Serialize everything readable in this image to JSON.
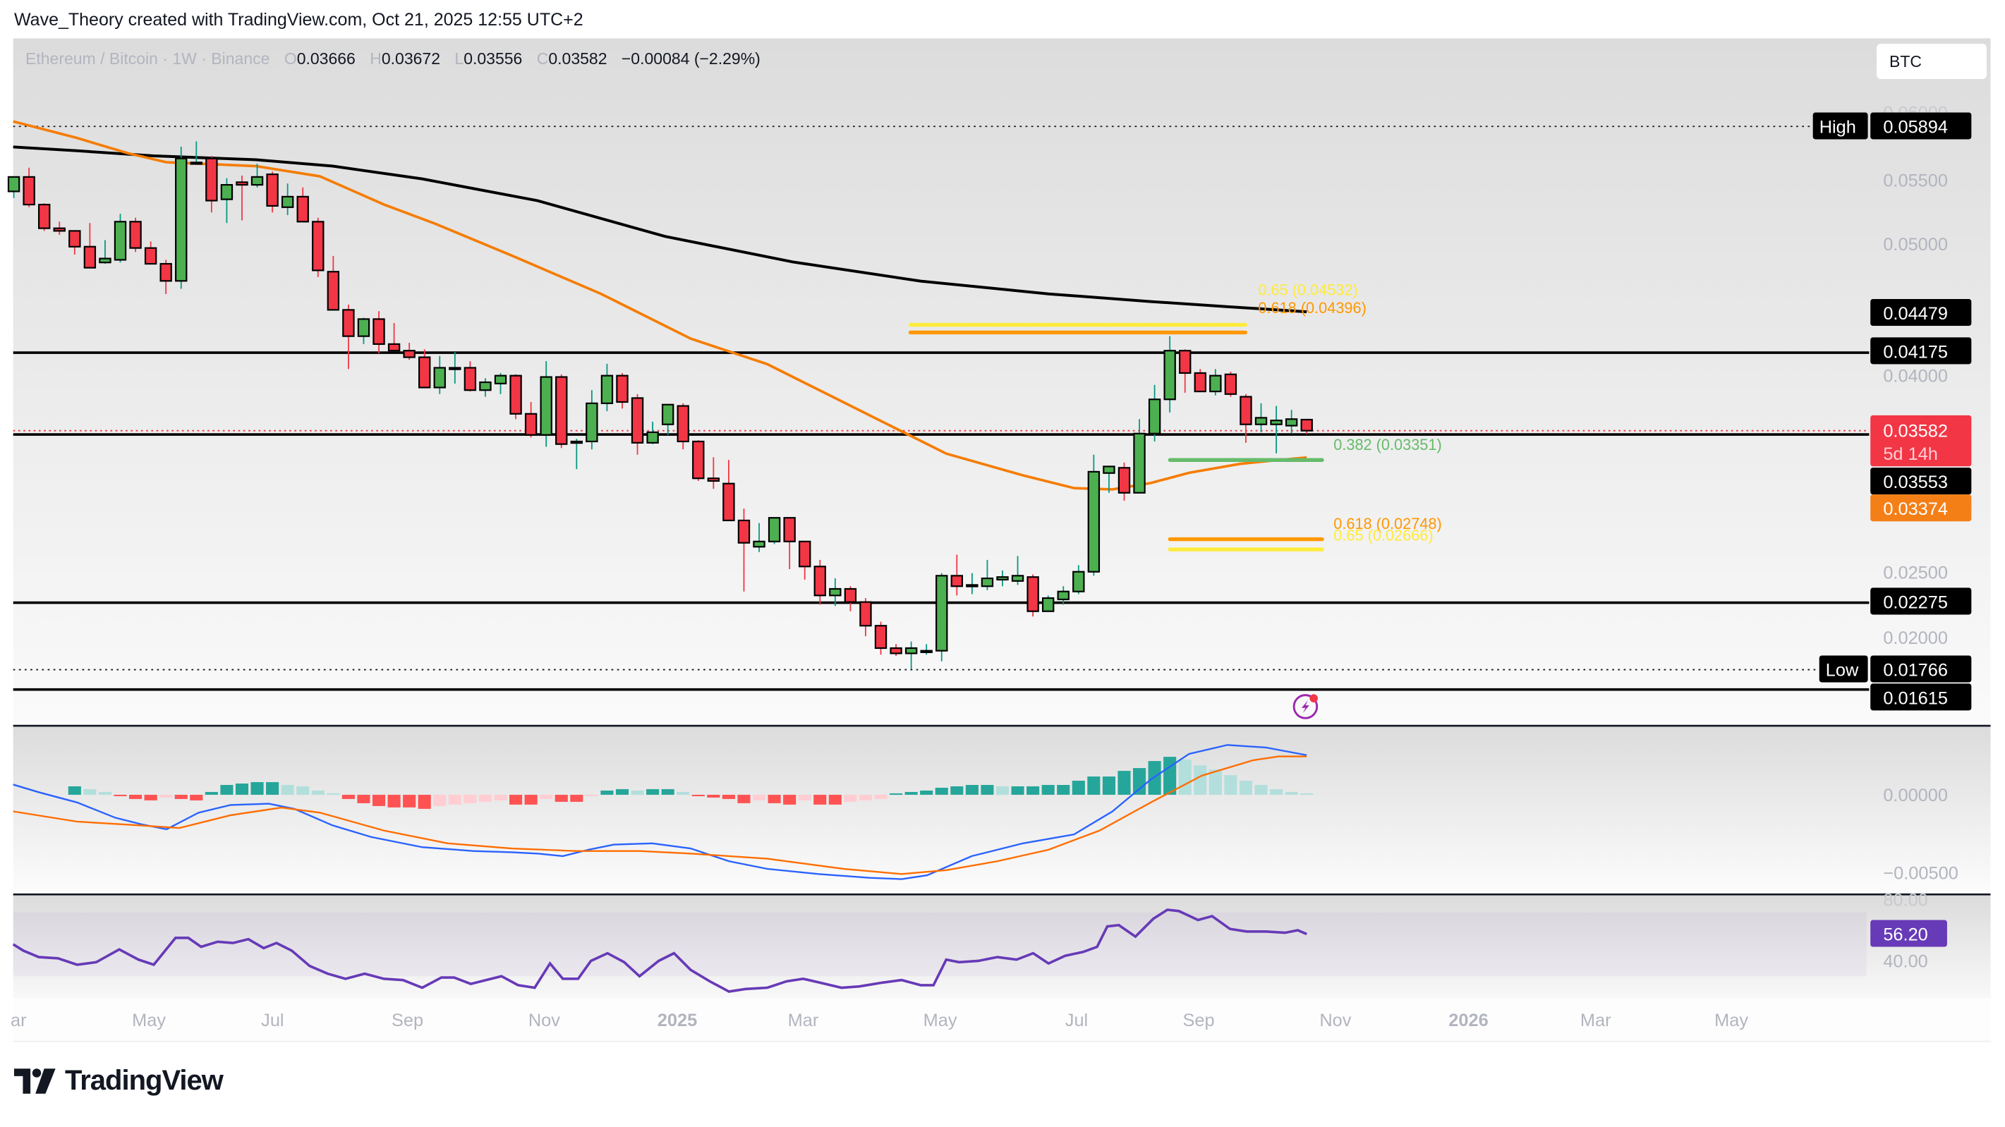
{
  "header": {
    "attribution": "Wave_Theory created with TradingView.com, Oct 21, 2025 12:55 UTC+2"
  },
  "legend": {
    "symbol": "Ethereum / Bitcoin · 1W · Binance",
    "open_label": "O",
    "open": "0.03666",
    "high_label": "H",
    "high": "0.03672",
    "low_label": "L",
    "low": "0.03556",
    "close_label": "C",
    "close": "0.03582",
    "change": "−0.00084 (−2.29%)"
  },
  "currency_button": "BTC",
  "price_axis": {
    "ticks": [
      "0.06000",
      "0.05500",
      "0.05000",
      "0.04000",
      "0.02500",
      "0.02000"
    ],
    "labels": {
      "high_tag": "High",
      "high_value": "0.05894",
      "ma200": "0.04479",
      "resistance": "0.04175",
      "last_price": "0.03582",
      "countdown": "5d 14h",
      "support": "0.03553",
      "ma50": "0.03374",
      "support_low": "0.02275",
      "low_tag": "Low",
      "low_value": "0.01766",
      "bottom_line": "0.01615"
    }
  },
  "fib_labels": {
    "upper_065": "0.65 (0.04532)",
    "upper_0618": "0.618 (0.04396)",
    "mid_0382": "0.382 (0.03351)",
    "lower_0618": "0.618 (0.02748)",
    "lower_065": "0.65 (0.02666)"
  },
  "macd_axis": {
    "ticks": [
      "0.00000",
      "−0.00500"
    ]
  },
  "rsi_axis": {
    "ticks": [
      "80.00",
      "40.00"
    ],
    "value": "56.20"
  },
  "time_axis": [
    "ar",
    "May",
    "Jul",
    "Sep",
    "Nov",
    "2025",
    "Mar",
    "May",
    "Jul",
    "Sep",
    "Nov",
    "2026",
    "Mar",
    "May"
  ],
  "brand": {
    "name": "TradingView"
  },
  "colors": {
    "up": "#4CAF50",
    "down": "#F23645",
    "ma50": "#F57C00",
    "ma200": "#000000",
    "fib_065": "#FFEB3B",
    "fib_0618": "#FF9800",
    "fib_0382": "#66BB6A",
    "macd": "#2962FF",
    "signal": "#FF6D00",
    "rsi": "#673AB7",
    "hist_up_strong": "#26A69A",
    "hist_up_weak": "#B2DFDB",
    "hist_down_strong": "#FF5252",
    "hist_down_weak": "#FFCDD2"
  },
  "chart_data": {
    "type": "candlestick",
    "title": "Ethereum / Bitcoin · 1W · Binance",
    "interval": "1W",
    "x_range": [
      "Mar 2024",
      "Oct 2025"
    ],
    "ylim": [
      0.0155,
      0.0605
    ],
    "y_ticks": [
      0.02,
      0.025,
      0.04,
      0.05,
      0.055,
      0.06
    ],
    "ohlc_current": {
      "open": 0.03666,
      "high": 0.03672,
      "low": 0.03556,
      "close": 0.03582,
      "change": -0.00084,
      "change_pct": -2.29
    },
    "candles": [
      {
        "o": 0.054,
        "h": 0.0547,
        "l": 0.0535,
        "c": 0.0551
      },
      {
        "o": 0.0551,
        "h": 0.0558,
        "l": 0.0528,
        "c": 0.053
      },
      {
        "o": 0.053,
        "h": 0.0531,
        "l": 0.051,
        "c": 0.0512
      },
      {
        "o": 0.0512,
        "h": 0.0517,
        "l": 0.0507,
        "c": 0.051
      },
      {
        "o": 0.051,
        "h": 0.051,
        "l": 0.0492,
        "c": 0.0498
      },
      {
        "o": 0.0498,
        "h": 0.0516,
        "l": 0.0482,
        "c": 0.0482
      },
      {
        "o": 0.0486,
        "h": 0.0503,
        "l": 0.0485,
        "c": 0.0489
      },
      {
        "o": 0.0488,
        "h": 0.0523,
        "l": 0.0486,
        "c": 0.0517
      },
      {
        "o": 0.0517,
        "h": 0.052,
        "l": 0.0494,
        "c": 0.0497
      },
      {
        "o": 0.0497,
        "h": 0.0502,
        "l": 0.049,
        "c": 0.0485
      },
      {
        "o": 0.0485,
        "h": 0.0488,
        "l": 0.0462,
        "c": 0.0472
      },
      {
        "o": 0.0472,
        "h": 0.0574,
        "l": 0.0466,
        "c": 0.0565
      },
      {
        "o": 0.0562,
        "h": 0.0578,
        "l": 0.0562,
        "c": 0.0562
      },
      {
        "o": 0.0565,
        "h": 0.0567,
        "l": 0.0524,
        "c": 0.0533
      },
      {
        "o": 0.0534,
        "h": 0.055,
        "l": 0.0516,
        "c": 0.0545
      },
      {
        "o": 0.0547,
        "h": 0.0552,
        "l": 0.0518,
        "c": 0.0545
      },
      {
        "o": 0.0545,
        "h": 0.0561,
        "l": 0.0543,
        "c": 0.0551
      },
      {
        "o": 0.0553,
        "h": 0.0555,
        "l": 0.0524,
        "c": 0.0529
      },
      {
        "o": 0.0528,
        "h": 0.0546,
        "l": 0.0522,
        "c": 0.0536
      },
      {
        "o": 0.0536,
        "h": 0.0543,
        "l": 0.052,
        "c": 0.0517
      },
      {
        "o": 0.0517,
        "h": 0.052,
        "l": 0.0475,
        "c": 0.048
      },
      {
        "o": 0.0479,
        "h": 0.0491,
        "l": 0.0462,
        "c": 0.045
      },
      {
        "o": 0.045,
        "h": 0.0454,
        "l": 0.0405,
        "c": 0.043
      },
      {
        "o": 0.043,
        "h": 0.0444,
        "l": 0.0424,
        "c": 0.0443
      },
      {
        "o": 0.0443,
        "h": 0.0449,
        "l": 0.0417,
        "c": 0.0424
      },
      {
        "o": 0.0424,
        "h": 0.044,
        "l": 0.042,
        "c": 0.0419
      },
      {
        "o": 0.0419,
        "h": 0.0425,
        "l": 0.0412,
        "c": 0.0414
      },
      {
        "o": 0.0414,
        "h": 0.042,
        "l": 0.0398,
        "c": 0.0391
      },
      {
        "o": 0.0391,
        "h": 0.0415,
        "l": 0.0386,
        "c": 0.0406
      },
      {
        "o": 0.0406,
        "h": 0.0418,
        "l": 0.0394,
        "c": 0.0406
      },
      {
        "o": 0.0406,
        "h": 0.0411,
        "l": 0.0388,
        "c": 0.0389
      },
      {
        "o": 0.0389,
        "h": 0.0398,
        "l": 0.0384,
        "c": 0.0395
      },
      {
        "o": 0.0394,
        "h": 0.0402,
        "l": 0.0386,
        "c": 0.04
      },
      {
        "o": 0.04,
        "h": 0.0401,
        "l": 0.0367,
        "c": 0.0371
      },
      {
        "o": 0.0371,
        "h": 0.038,
        "l": 0.0353,
        "c": 0.0355
      },
      {
        "o": 0.0355,
        "h": 0.0411,
        "l": 0.0346,
        "c": 0.0399
      },
      {
        "o": 0.0399,
        "h": 0.0401,
        "l": 0.0345,
        "c": 0.0348
      },
      {
        "o": 0.035,
        "h": 0.0352,
        "l": 0.0329,
        "c": 0.035
      },
      {
        "o": 0.035,
        "h": 0.0389,
        "l": 0.0344,
        "c": 0.0379
      },
      {
        "o": 0.0379,
        "h": 0.0409,
        "l": 0.0373,
        "c": 0.04
      },
      {
        "o": 0.04,
        "h": 0.0402,
        "l": 0.0375,
        "c": 0.038
      },
      {
        "o": 0.0383,
        "h": 0.0386,
        "l": 0.034,
        "c": 0.0349
      },
      {
        "o": 0.0349,
        "h": 0.0365,
        "l": 0.0348,
        "c": 0.0357
      },
      {
        "o": 0.0363,
        "h": 0.0367,
        "l": 0.0355,
        "c": 0.0378
      },
      {
        "o": 0.0377,
        "h": 0.0379,
        "l": 0.0344,
        "c": 0.035
      },
      {
        "o": 0.035,
        "h": 0.0351,
        "l": 0.032,
        "c": 0.0322
      },
      {
        "o": 0.0322,
        "h": 0.0338,
        "l": 0.0314,
        "c": 0.032
      },
      {
        "o": 0.0318,
        "h": 0.0336,
        "l": 0.0302,
        "c": 0.029
      },
      {
        "o": 0.029,
        "h": 0.0299,
        "l": 0.0236,
        "c": 0.0273
      },
      {
        "o": 0.027,
        "h": 0.0288,
        "l": 0.0266,
        "c": 0.0274
      },
      {
        "o": 0.0274,
        "h": 0.0292,
        "l": 0.0272,
        "c": 0.0292
      },
      {
        "o": 0.0292,
        "h": 0.0292,
        "l": 0.0253,
        "c": 0.0274
      },
      {
        "o": 0.0274,
        "h": 0.0265,
        "l": 0.0245,
        "c": 0.0255
      },
      {
        "o": 0.0255,
        "h": 0.026,
        "l": 0.0226,
        "c": 0.0233
      },
      {
        "o": 0.0233,
        "h": 0.0246,
        "l": 0.0225,
        "c": 0.0238
      },
      {
        "o": 0.0238,
        "h": 0.024,
        "l": 0.0221,
        "c": 0.0228
      },
      {
        "o": 0.0228,
        "h": 0.0231,
        "l": 0.0202,
        "c": 0.021
      },
      {
        "o": 0.021,
        "h": 0.0213,
        "l": 0.0188,
        "c": 0.0193
      },
      {
        "o": 0.0193,
        "h": 0.0196,
        "l": 0.0187,
        "c": 0.0189
      },
      {
        "o": 0.0189,
        "h": 0.0198,
        "l": 0.0177,
        "c": 0.0193
      },
      {
        "o": 0.0191,
        "h": 0.0196,
        "l": 0.0188,
        "c": 0.0191
      },
      {
        "o": 0.0191,
        "h": 0.025,
        "l": 0.0183,
        "c": 0.0248
      },
      {
        "o": 0.0248,
        "h": 0.0264,
        "l": 0.0233,
        "c": 0.024
      },
      {
        "o": 0.0241,
        "h": 0.025,
        "l": 0.0234,
        "c": 0.0241
      },
      {
        "o": 0.024,
        "h": 0.026,
        "l": 0.0237,
        "c": 0.0246
      },
      {
        "o": 0.0245,
        "h": 0.0252,
        "l": 0.024,
        "c": 0.0247
      },
      {
        "o": 0.0244,
        "h": 0.0263,
        "l": 0.0241,
        "c": 0.0248
      },
      {
        "o": 0.0247,
        "h": 0.0249,
        "l": 0.0217,
        "c": 0.0221
      },
      {
        "o": 0.0221,
        "h": 0.0233,
        "l": 0.0222,
        "c": 0.0231
      },
      {
        "o": 0.023,
        "h": 0.024,
        "l": 0.0226,
        "c": 0.0236
      },
      {
        "o": 0.0236,
        "h": 0.0256,
        "l": 0.0234,
        "c": 0.0251
      },
      {
        "o": 0.0251,
        "h": 0.034,
        "l": 0.0248,
        "c": 0.0327
      },
      {
        "o": 0.0326,
        "h": 0.0328,
        "l": 0.0311,
        "c": 0.0331
      },
      {
        "o": 0.033,
        "h": 0.0334,
        "l": 0.0305,
        "c": 0.0311
      },
      {
        "o": 0.0311,
        "h": 0.0367,
        "l": 0.0311,
        "c": 0.0356
      },
      {
        "o": 0.0356,
        "h": 0.0393,
        "l": 0.035,
        "c": 0.0382
      },
      {
        "o": 0.0382,
        "h": 0.043,
        "l": 0.0372,
        "c": 0.0419
      },
      {
        "o": 0.0419,
        "h": 0.042,
        "l": 0.0387,
        "c": 0.0402
      },
      {
        "o": 0.0402,
        "h": 0.0405,
        "l": 0.0389,
        "c": 0.0388
      },
      {
        "o": 0.0388,
        "h": 0.0405,
        "l": 0.0385,
        "c": 0.04
      },
      {
        "o": 0.0401,
        "h": 0.0403,
        "l": 0.0384,
        "c": 0.0386
      },
      {
        "o": 0.0384,
        "h": 0.0386,
        "l": 0.0349,
        "c": 0.0363
      },
      {
        "o": 0.0363,
        "h": 0.0379,
        "l": 0.0357,
        "c": 0.0368
      },
      {
        "o": 0.0363,
        "h": 0.0377,
        "l": 0.0341,
        "c": 0.0366
      },
      {
        "o": 0.0362,
        "h": 0.0374,
        "l": 0.0356,
        "c": 0.0367
      },
      {
        "o": 0.03666,
        "h": 0.03672,
        "l": 0.03556,
        "c": 0.03582
      }
    ],
    "moving_averages": [
      {
        "name": "MA (orange, 50)",
        "last": 0.03374
      },
      {
        "name": "MA (black, 200)",
        "last": 0.04479
      }
    ],
    "horizontal_levels": [
      0.05894,
      0.04175,
      0.03553,
      0.02275,
      0.01766,
      0.01615
    ],
    "fibonacci": {
      "upper": [
        {
          "ratio": 0.65,
          "price": 0.04532
        },
        {
          "ratio": 0.618,
          "price": 0.04396
        }
      ],
      "lower": [
        {
          "ratio": 0.382,
          "price": 0.03351
        },
        {
          "ratio": 0.618,
          "price": 0.02748
        },
        {
          "ratio": 0.65,
          "price": 0.02666
        }
      ]
    },
    "indicators": {
      "macd": {
        "y_ticks": [
          0.0,
          -0.005
        ],
        "trend": "bullish above zero, histogram fading"
      },
      "rsi": {
        "value": 56.2,
        "y_ticks": [
          40,
          80
        ],
        "band": [
          30,
          70
        ]
      }
    }
  }
}
